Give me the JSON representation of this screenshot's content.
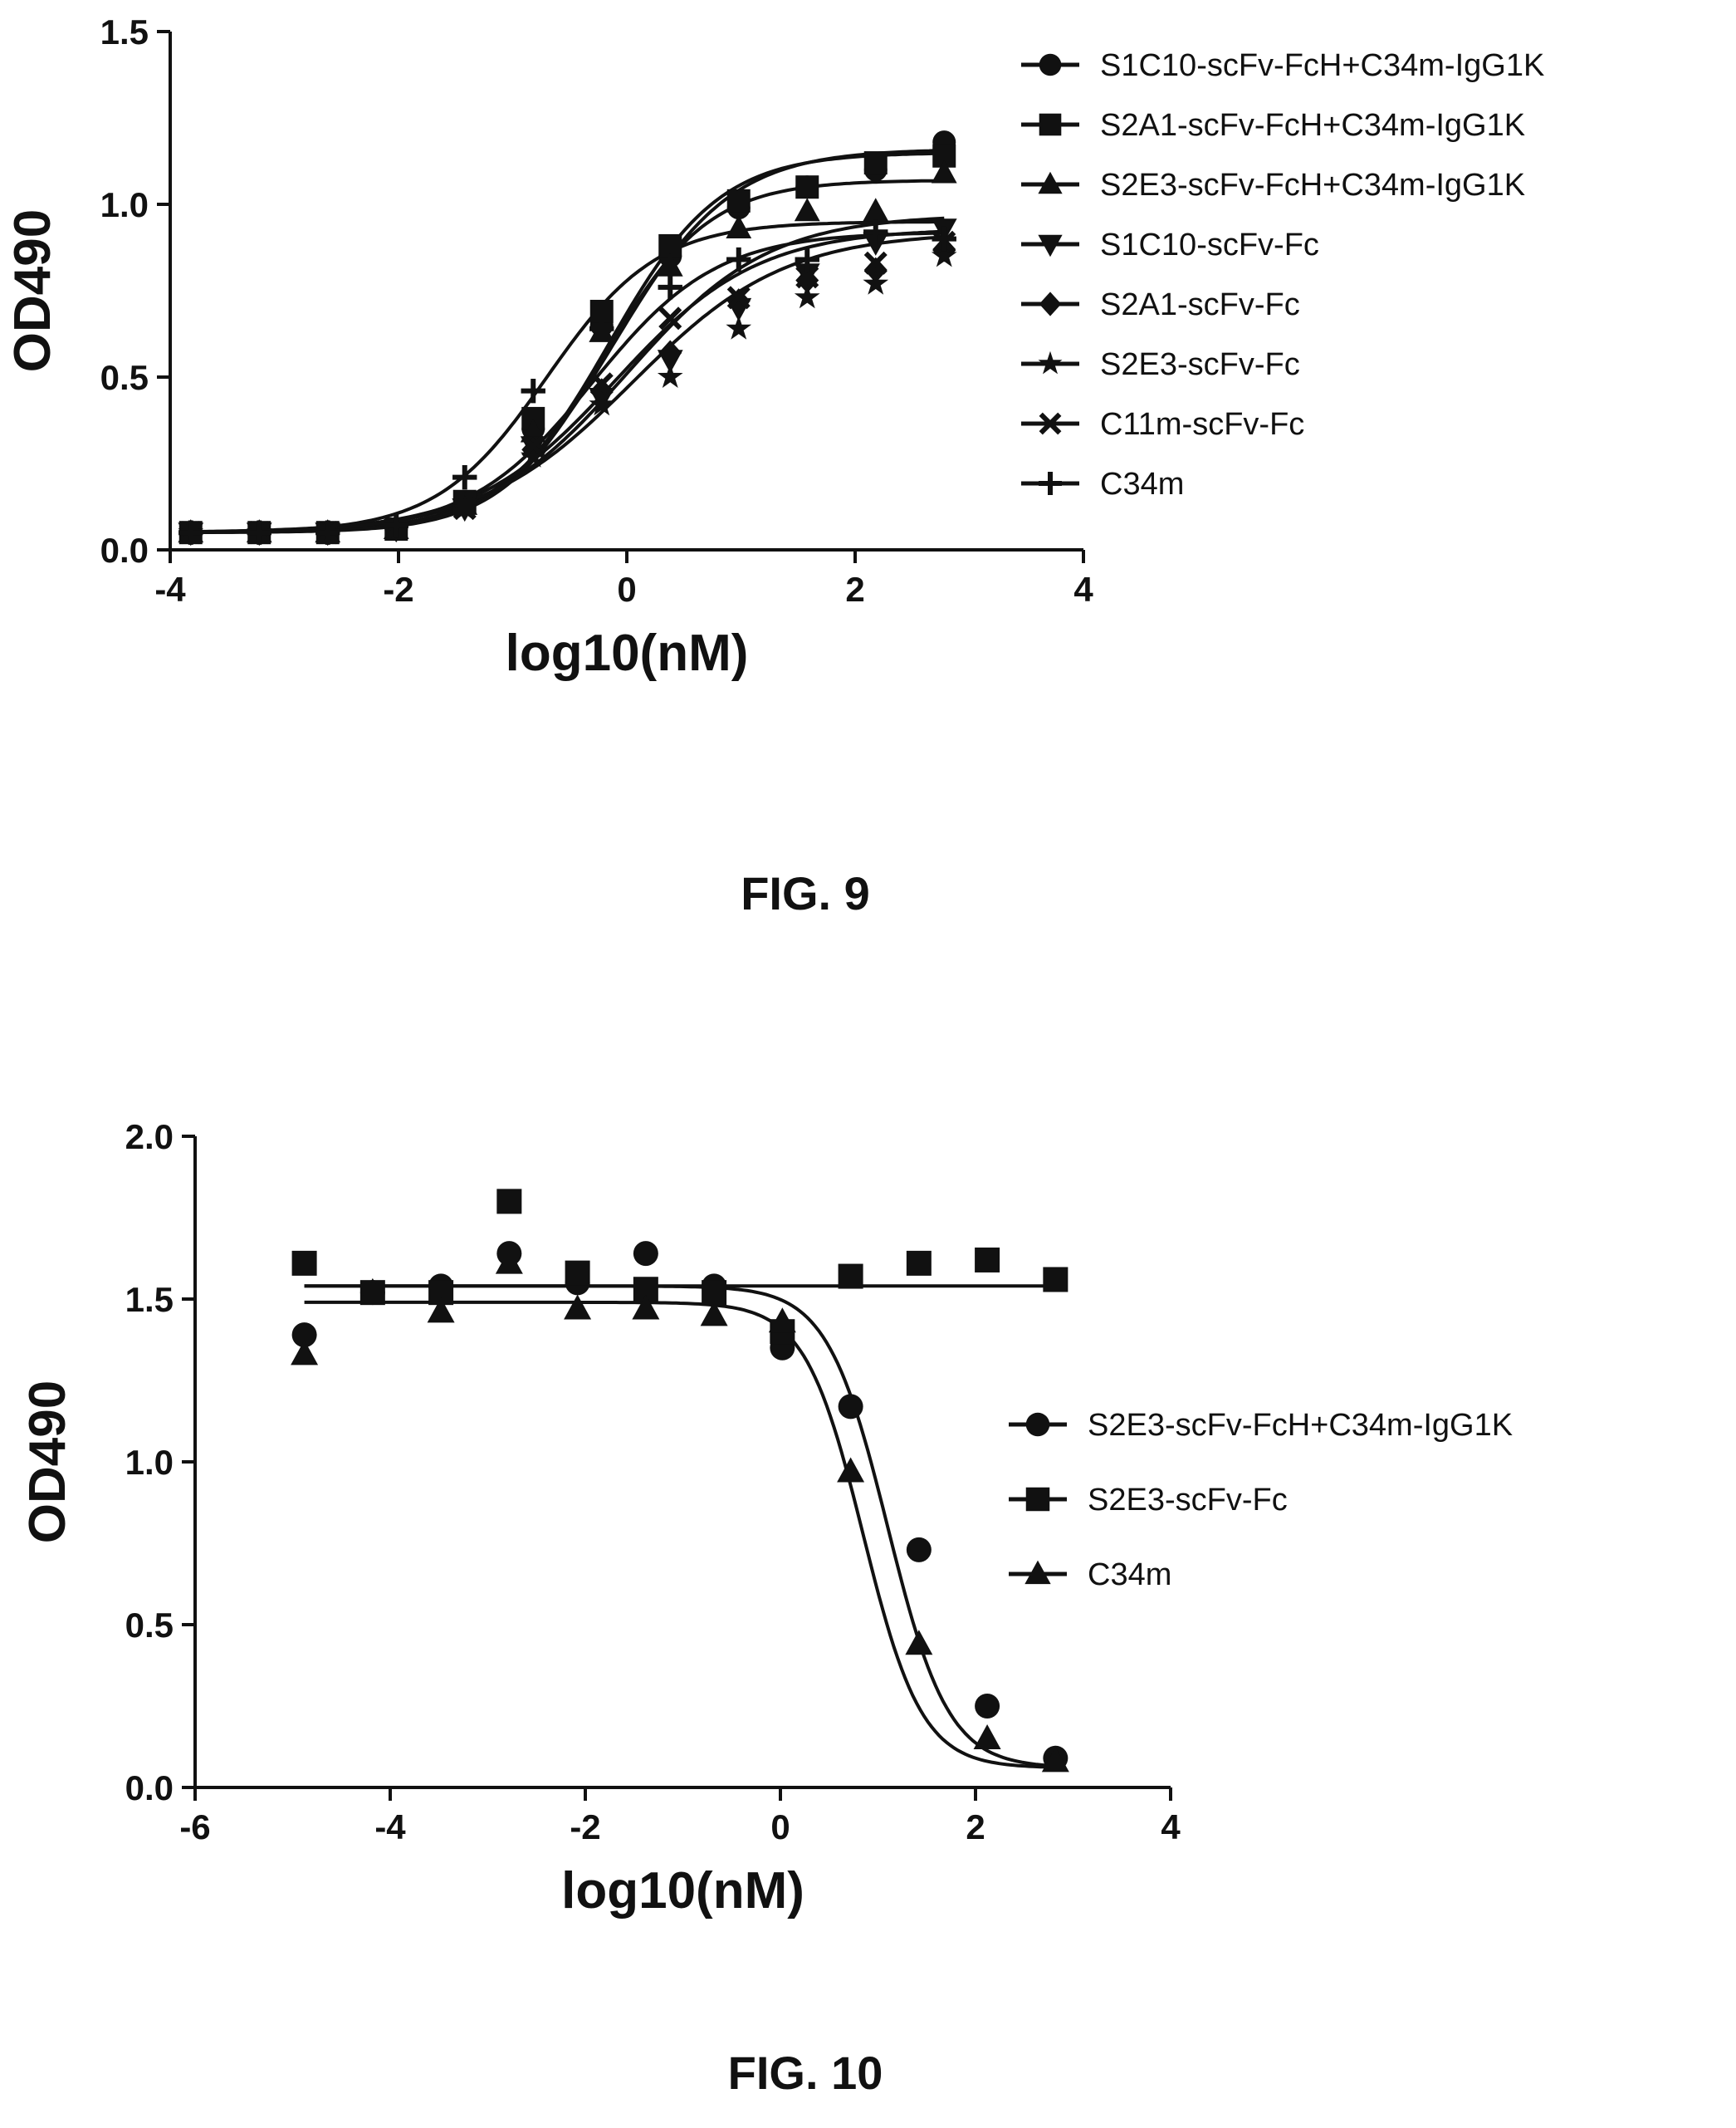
{
  "figures": [
    {
      "label": "FIG. 9"
    },
    {
      "label": "FIG. 10"
    }
  ],
  "chart_data": [
    {
      "type": "scatter",
      "title": "",
      "xlabel": "log10(nM)",
      "ylabel": "OD490",
      "xlim": [
        -4,
        4
      ],
      "ylim": [
        0.0,
        1.5
      ],
      "xticks": [
        -4,
        -2,
        0,
        2,
        4
      ],
      "yticks": [
        0.0,
        0.5,
        1.0,
        1.5
      ],
      "xtick_labels": [
        "-4",
        "-2",
        "0",
        "2",
        "4"
      ],
      "ytick_labels": [
        "0.0",
        "0.5",
        "1.0",
        "1.5"
      ],
      "grid": false,
      "legend_position": "right",
      "x": [
        -3.82,
        -3.22,
        -2.62,
        -2.02,
        -1.42,
        -0.82,
        -0.22,
        0.38,
        0.98,
        1.58,
        2.18,
        2.78
      ],
      "series": [
        {
          "name": "S1C10-scFv-FcH+C34m-IgG1K",
          "marker": "circle",
          "values": [
            0.05,
            0.05,
            0.05,
            0.06,
            0.13,
            0.35,
            0.65,
            0.85,
            0.99,
            1.05,
            1.1,
            1.18
          ],
          "fit": {
            "bottom": 0.05,
            "top": 1.16,
            "logEC50": -0.1,
            "hill": 0.85
          }
        },
        {
          "name": "S2A1-scFv-FcH+C34m-IgG1K",
          "marker": "square",
          "values": [
            0.05,
            0.05,
            0.05,
            0.06,
            0.14,
            0.38,
            0.69,
            0.88,
            1.01,
            1.05,
            1.12,
            1.14
          ],
          "fit": {
            "bottom": 0.05,
            "top": 1.15,
            "logEC50": -0.15,
            "hill": 0.9
          }
        },
        {
          "name": "S2E3-scFv-FcH+C34m-IgG1K",
          "marker": "triangle-up",
          "values": [
            0.05,
            0.05,
            0.05,
            0.06,
            0.13,
            0.34,
            0.63,
            0.82,
            0.93,
            0.98,
            0.98,
            1.09
          ],
          "fit": {
            "bottom": 0.05,
            "top": 1.07,
            "logEC50": -0.2,
            "hill": 0.95
          }
        },
        {
          "name": "S1C10-scFv-Fc",
          "marker": "triangle-down",
          "values": [
            0.05,
            0.05,
            0.05,
            0.06,
            0.12,
            0.3,
            0.44,
            0.55,
            0.7,
            0.8,
            0.89,
            0.93
          ],
          "fit": {
            "bottom": 0.05,
            "top": 0.97,
            "logEC50": 0.0,
            "hill": 0.7
          }
        },
        {
          "name": "S2A1-scFv-Fc",
          "marker": "diamond",
          "values": [
            0.05,
            0.05,
            0.05,
            0.06,
            0.13,
            0.29,
            0.46,
            0.57,
            0.72,
            0.78,
            0.81,
            0.87
          ],
          "fit": {
            "bottom": 0.05,
            "top": 0.93,
            "logEC50": -0.1,
            "hill": 0.7
          }
        },
        {
          "name": "S2E3-scFv-Fc",
          "marker": "star",
          "values": [
            0.05,
            0.05,
            0.05,
            0.06,
            0.12,
            0.27,
            0.42,
            0.5,
            0.64,
            0.73,
            0.77,
            0.85
          ],
          "fit": {
            "bottom": 0.05,
            "top": 0.92,
            "logEC50": 0.05,
            "hill": 0.65
          }
        },
        {
          "name": "C11m-scFv-Fc",
          "marker": "x",
          "values": [
            0.05,
            0.05,
            0.05,
            0.06,
            0.12,
            0.3,
            0.48,
            0.67,
            0.73,
            0.79,
            0.83,
            0.89
          ],
          "fit": {
            "bottom": 0.05,
            "top": 0.92,
            "logEC50": -0.3,
            "hill": 0.8
          }
        },
        {
          "name": "C34m",
          "marker": "plus",
          "values": [
            0.05,
            0.05,
            0.05,
            0.07,
            0.21,
            0.46,
            0.64,
            0.76,
            0.84,
            0.84,
            0.92,
            0.9
          ],
          "fit": {
            "bottom": 0.05,
            "top": 0.95,
            "logEC50": -0.7,
            "hill": 0.9
          }
        }
      ]
    },
    {
      "type": "scatter",
      "title": "",
      "xlabel": "log10(nM)",
      "ylabel": "OD490",
      "xlim": [
        -6,
        4
      ],
      "ylim": [
        0.0,
        2.0
      ],
      "xticks": [
        -6,
        -4,
        -2,
        0,
        2,
        4
      ],
      "yticks": [
        0.0,
        0.5,
        1.0,
        1.5,
        2.0
      ],
      "xtick_labels": [
        "-6",
        "-4",
        "-2",
        "0",
        "2",
        "4"
      ],
      "ytick_labels": [
        "0.0",
        "0.5",
        "1.0",
        "1.5",
        "2.0"
      ],
      "grid": false,
      "legend_position": "right",
      "x": [
        -4.88,
        -4.18,
        -3.48,
        -2.78,
        -2.08,
        -1.38,
        -0.68,
        0.02,
        0.72,
        1.42,
        2.12,
        2.82
      ],
      "series": [
        {
          "name": "S2E3-scFv-FcH+C34m-IgG1K",
          "marker": "circle",
          "values": [
            1.39,
            1.52,
            1.54,
            1.64,
            1.55,
            1.64,
            1.54,
            1.35,
            1.17,
            0.73,
            0.25,
            0.09
          ],
          "fit": {
            "top": 1.54,
            "bottom": 0.06,
            "logIC50": 1.1,
            "hill": -1.4
          }
        },
        {
          "name": "S2E3-scFv-Fc",
          "marker": "square",
          "values": [
            1.61,
            1.52,
            1.52,
            1.8,
            1.58,
            1.53,
            1.52,
            1.4,
            1.57,
            1.61,
            1.62,
            1.56
          ],
          "fit": {
            "top": 1.54,
            "bottom": 1.54,
            "logIC50": 0.0,
            "hill": -1.0
          }
        },
        {
          "name": "C34m",
          "marker": "triangle-up",
          "values": [
            1.33,
            1.52,
            1.46,
            1.61,
            1.47,
            1.47,
            1.45,
            1.43,
            0.97,
            0.44,
            0.15,
            0.08
          ],
          "fit": {
            "top": 1.49,
            "bottom": 0.06,
            "logIC50": 0.85,
            "hill": -1.45
          }
        }
      ]
    }
  ]
}
